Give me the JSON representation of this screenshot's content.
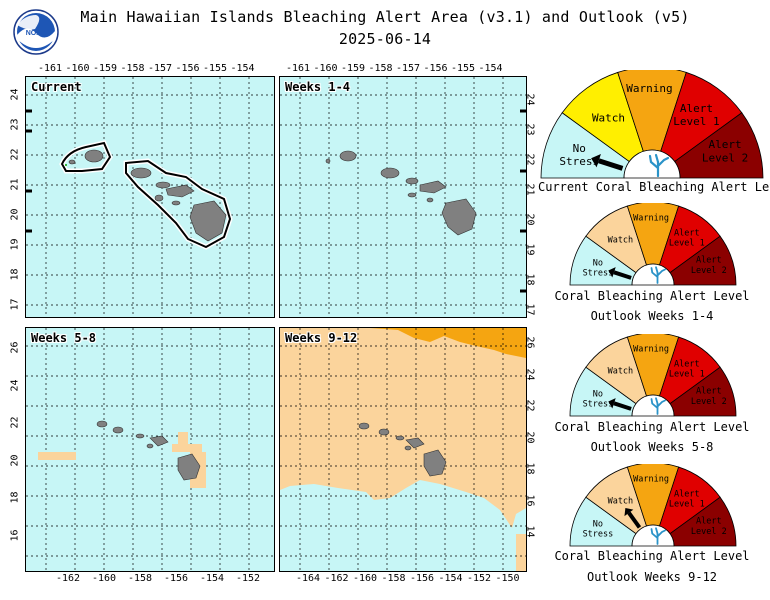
{
  "header": {
    "title": "Main Hawaiian Islands Bleaching Alert Area (v3.1) and Outlook (v5)",
    "date": "2025-06-14",
    "logo_text": "NOAA"
  },
  "panels": [
    {
      "id": "current",
      "label": "Current"
    },
    {
      "id": "weeks1-4",
      "label": "Weeks 1-4"
    },
    {
      "id": "weeks5-8",
      "label": "Weeks 5-8"
    },
    {
      "id": "weeks9-12",
      "label": "Weeks 9-12"
    }
  ],
  "axes": {
    "top_lon_ticks": [
      "-161",
      "-160",
      "-159",
      "-158",
      "-157",
      "-156",
      "-155",
      "-154"
    ],
    "top_lat_ticks": [
      "24",
      "23",
      "22",
      "21",
      "20",
      "19",
      "18",
      "17"
    ],
    "wk58_lon_ticks": [
      "-162",
      "-160",
      "-158",
      "-156",
      "-154",
      "-152"
    ],
    "wk58_lat_ticks": [
      "26",
      "24",
      "22",
      "20",
      "18",
      "16"
    ],
    "wk912_lon_ticks": [
      "-164",
      "-162",
      "-160",
      "-158",
      "-156",
      "-154",
      "-152",
      "-150"
    ],
    "wk912_lat_ticks": [
      "26",
      "24",
      "22",
      "20",
      "18",
      "16",
      "14"
    ]
  },
  "legend_levels": {
    "no_stress": "No Stress",
    "watch": "Watch",
    "warning": "Warning",
    "alert1": "Alert Level 1",
    "alert2": "Alert Level 2"
  },
  "gauges": [
    {
      "caption1": "Current Coral Bleaching Alert Level",
      "caption2": "",
      "level": "No Stress"
    },
    {
      "caption1": "Coral Bleaching Alert Level",
      "caption2": "Outlook Weeks 1-4",
      "level": "No Stress"
    },
    {
      "caption1": "Coral Bleaching Alert Level",
      "caption2": "Outlook Weeks 5-8",
      "level": "No Stress"
    },
    {
      "caption1": "Coral Bleaching Alert Level",
      "caption2": "Outlook Weeks 9-12",
      "level": "Watch"
    }
  ],
  "colors": {
    "ocean_no_stress": "#c7f6f6",
    "watch_current": "#ffef00",
    "watch_outlook": "#fbd49c",
    "warning": "#f5a511",
    "alert1": "#e00000",
    "alert2": "#8b0000",
    "land": "#808080"
  }
}
